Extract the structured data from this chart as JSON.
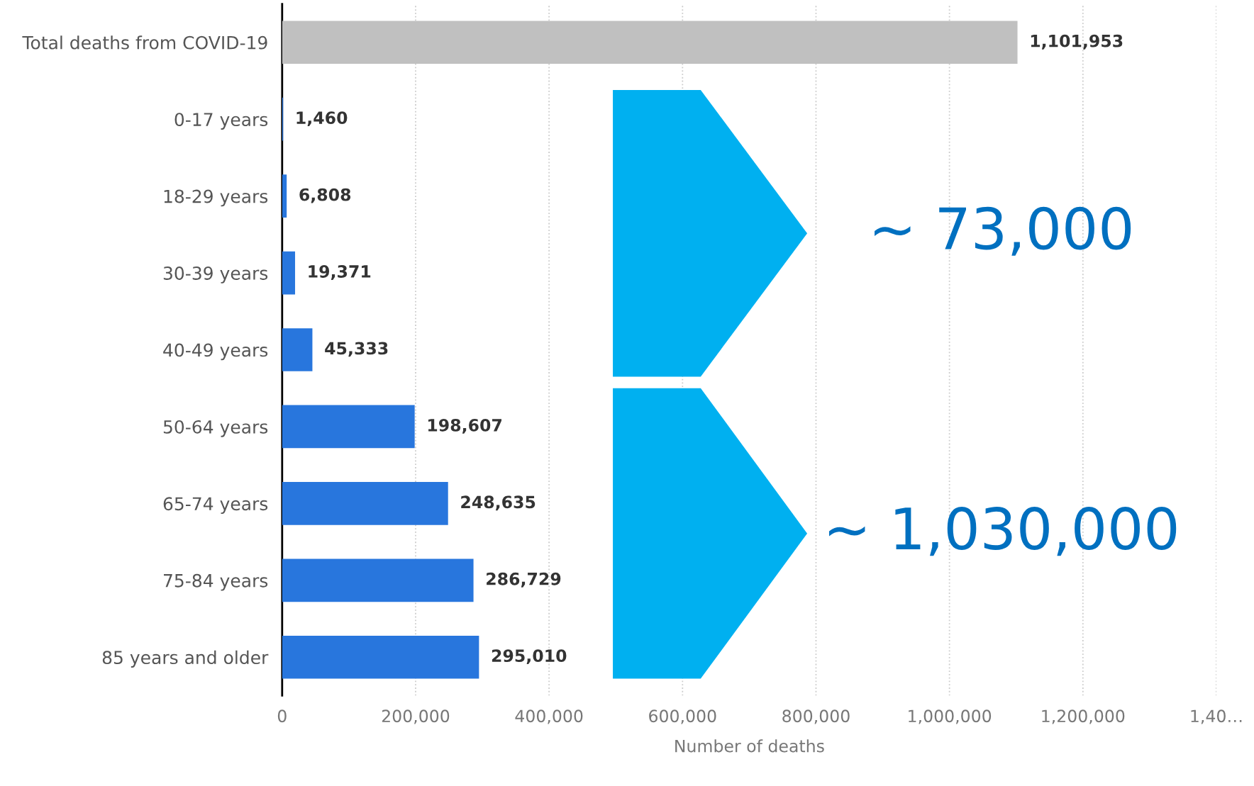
{
  "chart_data": {
    "type": "bar",
    "orientation": "horizontal",
    "xlabel": "Number of deaths",
    "categories": [
      "Total deaths from COVID-19",
      "0-17 years",
      "18-29 years",
      "30-39 years",
      "40-49 years",
      "50-64 years",
      "65-74 years",
      "75-84 years",
      "85 years and older"
    ],
    "values": [
      1101953,
      1460,
      6808,
      19371,
      45333,
      198607,
      248635,
      286729,
      295010
    ],
    "colors": [
      "#c0c0c0",
      "#2876dd",
      "#2876dd",
      "#2876dd",
      "#2876dd",
      "#2876dd",
      "#2876dd",
      "#2876dd",
      "#2876dd"
    ],
    "xlim": [
      0,
      1400000
    ],
    "xticks": [
      0,
      {
        "value": 200000,
        "label": "200,000"
      },
      {
        "value": 400000,
        "label": "400,000"
      },
      {
        "value": 600000,
        "label": "600,000"
      },
      {
        "value": 800000,
        "label": "800,000"
      },
      {
        "value": 1000000,
        "label": "1,000,000"
      },
      {
        "value": 1200000,
        "label": "1,200,000"
      },
      {
        "value": 1400000,
        "label": "1,40…"
      }
    ],
    "grid": "x",
    "value_labels": [
      "1,101,953",
      "1,460",
      "6,808",
      "19,371",
      "45,333",
      "198,607",
      "248,635",
      "286,729",
      "295,010"
    ],
    "annotations": [
      "~ 73,000",
      "~ 1,030,000"
    ]
  }
}
